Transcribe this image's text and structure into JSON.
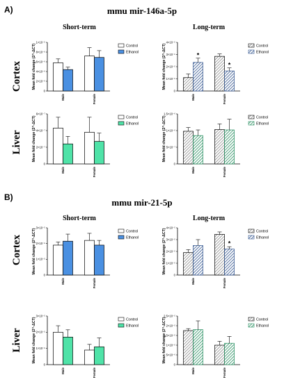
{
  "figure": {
    "panel_a_letter": "A)",
    "panel_a_title": "mmu mir-146a-5p",
    "panel_b_letter": "B)",
    "panel_b_title": "mmu mir-21-5p",
    "col_short": "Short-term",
    "col_long": "Long-term",
    "row_cortex": "Cortex",
    "row_liver": "Liver"
  },
  "colors": {
    "control": "#ffffff",
    "ethanol_cortex_short": "#4a90e2",
    "ethanol_liver_short": "#4fe3a8",
    "long_control_hatch": "#707070",
    "long_ethanol_cortex": "#2a4e8a",
    "long_ethanol_liver": "#1f8a5a"
  },
  "chart_data": [
    {
      "id": "a-cortex-short",
      "type": "bar",
      "panel": "A",
      "tissue": "Cortex",
      "term": "Short-term",
      "ylabel": "Mean fold change (2^-ΔCT)",
      "ylim": [
        0,
        1e-05
      ],
      "yticks": [
        "0",
        "2×10⁻⁶",
        "4×10⁻⁶",
        "6×10⁻⁶",
        "8×10⁻⁶",
        "1×10⁻⁵"
      ],
      "categories": [
        "Male",
        "Female"
      ],
      "series": [
        {
          "name": "Control",
          "values": [
            5.8e-06,
            7.2e-06
          ],
          "errors": [
            8e-07,
            1.7e-06
          ]
        },
        {
          "name": "Ethanol",
          "values": [
            4.4e-06,
            6.9e-06
          ],
          "errors": [
            5e-07,
            1.4e-06
          ]
        }
      ],
      "annotations": []
    },
    {
      "id": "a-cortex-long",
      "type": "bar",
      "panel": "A",
      "tissue": "Cortex",
      "term": "Long-term",
      "ylabel": "Mean fold change (2^-ΔCT)",
      "ylim": [
        0,
        4e-05
      ],
      "yticks": [
        "0",
        "1×10⁻⁵",
        "2×10⁻⁵",
        "3×10⁻⁵",
        "4×10⁻⁵"
      ],
      "categories": [
        "Male",
        "Female"
      ],
      "series": [
        {
          "name": "Control",
          "values": [
            1.1e-05,
            2.85e-05
          ],
          "errors": [
            3e-06,
            2e-06
          ]
        },
        {
          "name": "Ethanol",
          "values": [
            2.35e-05,
            1.65e-05
          ],
          "errors": [
            3.5e-06,
            2.5e-06
          ]
        }
      ],
      "annotations": [
        {
          "text": "*",
          "category": "Male",
          "series": "Ethanol"
        },
        {
          "text": "*",
          "category": "Female",
          "series": "Ethanol"
        }
      ]
    },
    {
      "id": "a-liver-short",
      "type": "bar",
      "panel": "A",
      "tissue": "Liver",
      "term": "Short-term",
      "ylabel": "Mean fold change (2^-ΔCT)",
      "ylim": [
        0,
        6e-07
      ],
      "yticks": [
        "0",
        "2×10⁻⁷",
        "4×10⁻⁷",
        "6×10⁻⁷"
      ],
      "categories": [
        "Male",
        "Female"
      ],
      "series": [
        {
          "name": "Control",
          "values": [
            4.3e-07,
            3.8e-07
          ],
          "errors": [
            1.3e-07,
            1.8e-07
          ]
        },
        {
          "name": "Ethanol",
          "values": [
            2.4e-07,
            2.7e-07
          ],
          "errors": [
            9e-08,
            1e-07
          ]
        }
      ],
      "annotations": []
    },
    {
      "id": "a-liver-long",
      "type": "bar",
      "panel": "A",
      "tissue": "Liver",
      "term": "Long-term",
      "ylabel": "Mean fold change (2^-ΔCT)",
      "ylim": [
        0,
        1.5e-06
      ],
      "yticks": [
        "0",
        "5×10⁻⁷",
        "1×10⁻⁶",
        "1.5×10⁻⁶"
      ],
      "categories": [
        "Male",
        "Female"
      ],
      "series": [
        {
          "name": "Control",
          "values": [
            9.8e-07,
            1.03e-06
          ],
          "errors": [
            1.1e-07,
            1.7e-07
          ]
        },
        {
          "name": "Ethanol",
          "values": [
            8.5e-07,
            1.02e-06
          ],
          "errors": [
            1.7e-07,
            3.2e-07
          ]
        }
      ],
      "annotations": []
    },
    {
      "id": "b-cortex-short",
      "type": "bar",
      "panel": "B",
      "tissue": "Cortex",
      "term": "Short-term",
      "ylabel": "Mean fold change (2^-ΔCT)",
      "ylim": [
        0,
        3e-05
      ],
      "yticks": [
        "0",
        "1×10⁻⁵",
        "2×10⁻⁵",
        "3×10⁻⁵"
      ],
      "categories": [
        "Male",
        "Female"
      ],
      "series": [
        {
          "name": "Control",
          "values": [
            1.9e-05,
            2.2e-05
          ],
          "errors": [
            2e-06,
            4.5e-06
          ]
        },
        {
          "name": "Ethanol",
          "values": [
            2.15e-05,
            1.9e-05
          ],
          "errors": [
            4.5e-06,
            3e-06
          ]
        }
      ],
      "annotations": []
    },
    {
      "id": "b-cortex-long",
      "type": "bar",
      "panel": "B",
      "tissue": "Cortex",
      "term": "Long-term",
      "ylabel": "Mean fold change (2^-ΔCT)",
      "ylim": [
        0,
        4e-05
      ],
      "yticks": [
        "0",
        "1×10⁻⁵",
        "2×10⁻⁵",
        "3×10⁻⁵",
        "4×10⁻⁵"
      ],
      "categories": [
        "Male",
        "Female"
      ],
      "series": [
        {
          "name": "Control",
          "values": [
            1.9e-05,
            3.45e-05
          ],
          "errors": [
            2.5e-06,
            2e-06
          ]
        },
        {
          "name": "Ethanol",
          "values": [
            2.5e-05,
            2.2e-05
          ],
          "errors": [
            5e-06,
            2e-06
          ]
        }
      ],
      "annotations": [
        {
          "text": "*",
          "category": "Female",
          "series": "Ethanol"
        }
      ]
    },
    {
      "id": "b-liver-short",
      "type": "bar",
      "panel": "B",
      "tissue": "Liver",
      "term": "Short-term",
      "ylabel": "Mean fold change (2^-ΔCT)",
      "ylim": [
        0,
        3e-05
      ],
      "yticks": [
        "0",
        "1×10⁻⁵",
        "2×10⁻⁵",
        "3×10⁻⁵"
      ],
      "categories": [
        "Male",
        "Female"
      ],
      "series": [
        {
          "name": "Control",
          "values": [
            2e-05,
            9e-06
          ],
          "errors": [
            4e-06,
            3.5e-06
          ]
        },
        {
          "name": "Ethanol",
          "values": [
            1.7e-05,
            1.1e-05
          ],
          "errors": [
            4.5e-06,
            5.5e-06
          ]
        }
      ],
      "annotations": []
    },
    {
      "id": "b-liver-long",
      "type": "bar",
      "panel": "B",
      "tissue": "Liver",
      "term": "Long-term",
      "ylabel": "Mean fold change (2^-ΔCT)",
      "ylim": [
        0,
        2.5e-05
      ],
      "yticks": [
        "0",
        "5×10⁻⁶",
        "1×10⁻⁵",
        "1.5×10⁻⁵",
        "2×10⁻⁵",
        "2.5×10⁻⁵"
      ],
      "categories": [
        "Male",
        "Female"
      ],
      "series": [
        {
          "name": "Control",
          "values": [
            1.75e-05,
            1e-05
          ],
          "errors": [
            1e-06,
            2e-06
          ]
        },
        {
          "name": "Ethanol",
          "values": [
            1.8e-05,
            1.1e-05
          ],
          "errors": [
            4.5e-06,
            3.5e-06
          ]
        }
      ],
      "annotations": []
    }
  ]
}
